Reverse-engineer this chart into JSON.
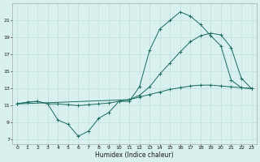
{
  "xlabel": "Humidex (Indice chaleur)",
  "bg_color": "#d8f0ee",
  "line_color": "#1a6b60",
  "grid_color": "#c0dedd",
  "xlim": [
    -0.5,
    23.5
  ],
  "ylim": [
    6.5,
    23.0
  ],
  "xticks": [
    0,
    1,
    2,
    3,
    4,
    5,
    6,
    7,
    8,
    9,
    10,
    11,
    12,
    13,
    14,
    15,
    16,
    17,
    18,
    19,
    20,
    21,
    22,
    23
  ],
  "yticks": [
    7,
    9,
    11,
    13,
    15,
    17,
    19,
    21
  ],
  "line1_x": [
    0,
    1,
    2,
    3,
    4,
    5,
    6,
    7,
    8,
    9,
    10,
    11,
    12,
    13,
    14,
    15,
    16,
    17,
    18,
    19,
    20,
    21,
    22,
    23
  ],
  "line1_y": [
    11.2,
    11.4,
    11.5,
    11.2,
    11.2,
    11.1,
    11.0,
    11.1,
    11.2,
    11.3,
    11.5,
    11.7,
    12.0,
    12.3,
    12.6,
    12.9,
    13.1,
    13.3,
    13.4,
    13.4,
    13.3,
    13.2,
    13.1,
    13.0
  ],
  "line2_x": [
    0,
    1,
    2,
    3,
    4,
    5,
    6,
    7,
    8,
    9,
    10,
    11,
    12,
    13,
    14,
    15,
    16,
    17,
    18,
    19,
    20,
    21,
    22,
    23
  ],
  "line2_y": [
    11.2,
    11.4,
    11.5,
    11.2,
    9.3,
    8.8,
    7.4,
    8.0,
    9.5,
    10.2,
    11.5,
    11.5,
    13.2,
    17.5,
    20.0,
    21.0,
    22.0,
    21.5,
    20.5,
    19.2,
    18.0,
    14.0,
    13.1,
    13.0
  ],
  "line3_x": [
    0,
    11,
    12,
    13,
    14,
    15,
    16,
    17,
    18,
    19,
    20,
    21,
    22,
    23
  ],
  "line3_y": [
    11.2,
    11.7,
    12.2,
    13.2,
    14.7,
    16.0,
    17.3,
    18.5,
    19.2,
    19.5,
    19.3,
    17.8,
    14.2,
    13.0
  ]
}
